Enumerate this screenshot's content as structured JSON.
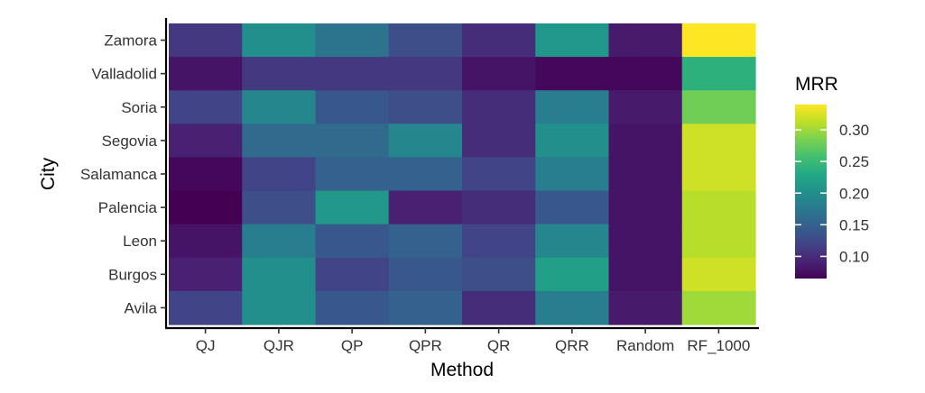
{
  "chart_data": {
    "type": "heatmap",
    "title": "",
    "xlabel": "Method",
    "ylabel": "City",
    "x_categories": [
      "QJ",
      "QJR",
      "QP",
      "QPR",
      "QR",
      "QRR",
      "Random",
      "RF_1000"
    ],
    "y_categories": [
      "Zamora",
      "Valladolid",
      "Soria",
      "Segovia",
      "Salamanca",
      "Palencia",
      "Leon",
      "Burgos",
      "Avila"
    ],
    "values": [
      [
        0.11,
        0.2,
        0.17,
        0.13,
        0.1,
        0.21,
        0.085,
        0.34
      ],
      [
        0.08,
        0.11,
        0.11,
        0.11,
        0.08,
        0.07,
        0.07,
        0.24
      ],
      [
        0.12,
        0.19,
        0.14,
        0.13,
        0.1,
        0.18,
        0.085,
        0.28
      ],
      [
        0.09,
        0.16,
        0.16,
        0.19,
        0.1,
        0.2,
        0.08,
        0.32
      ],
      [
        0.07,
        0.12,
        0.15,
        0.15,
        0.12,
        0.18,
        0.08,
        0.32
      ],
      [
        0.065,
        0.13,
        0.21,
        0.09,
        0.1,
        0.14,
        0.08,
        0.31
      ],
      [
        0.08,
        0.18,
        0.14,
        0.15,
        0.12,
        0.19,
        0.08,
        0.31
      ],
      [
        0.09,
        0.2,
        0.12,
        0.14,
        0.13,
        0.22,
        0.08,
        0.32
      ],
      [
        0.12,
        0.2,
        0.14,
        0.15,
        0.1,
        0.18,
        0.085,
        0.3
      ]
    ],
    "color_scale": "viridis",
    "color_range": [
      0.065,
      0.34
    ],
    "legend": {
      "title": "MRR",
      "ticks": [
        0.1,
        0.15,
        0.2,
        0.25,
        0.3
      ],
      "tick_labels": [
        "0.10",
        "0.15",
        "0.20",
        "0.25",
        "0.30"
      ],
      "placement": "right"
    },
    "grid": false
  }
}
